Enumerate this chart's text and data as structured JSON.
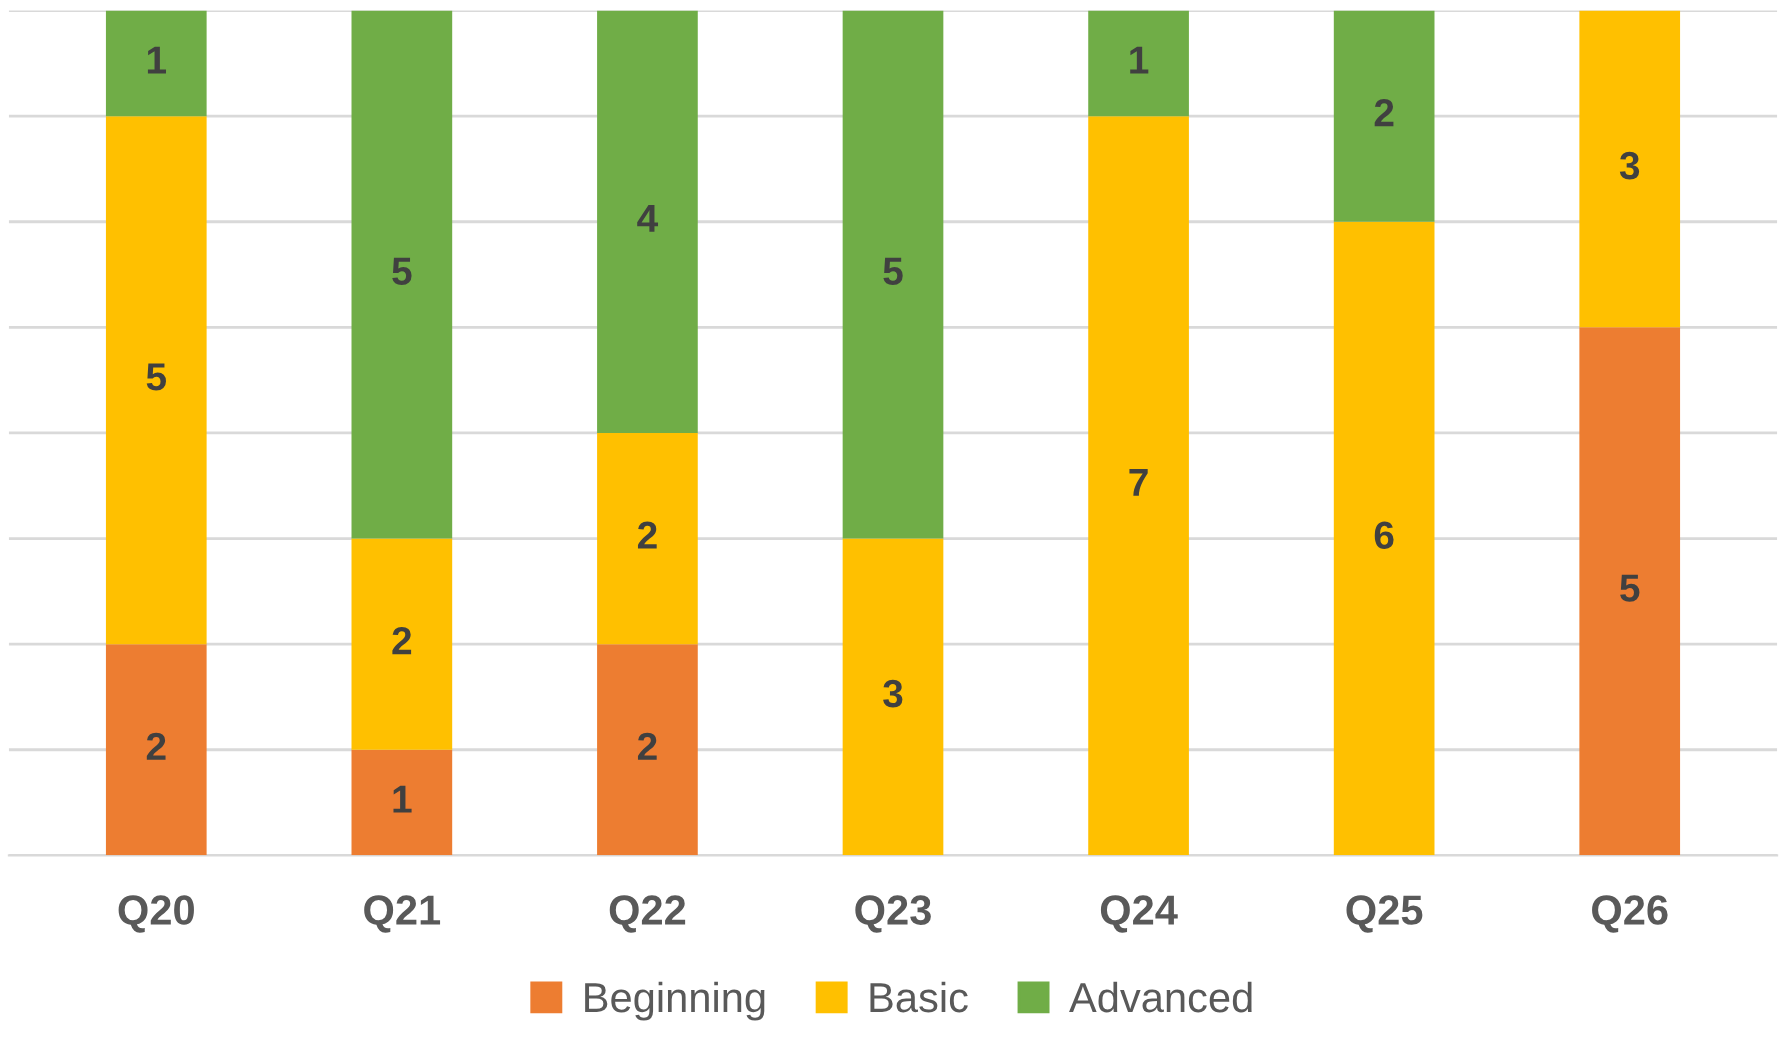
{
  "chart_data": {
    "type": "bar",
    "stacked": true,
    "categories": [
      "Q20",
      "Q21",
      "Q22",
      "Q23",
      "Q24",
      "Q25",
      "Q26"
    ],
    "series": [
      {
        "name": "Beginning",
        "color": "#ed7d31",
        "values": [
          2,
          1,
          2,
          null,
          null,
          null,
          5
        ]
      },
      {
        "name": "Basic",
        "color": "#ffc000",
        "values": [
          5,
          2,
          2,
          3,
          7,
          6,
          3
        ]
      },
      {
        "name": "Advanced",
        "color": "#70ad47",
        "values": [
          1,
          5,
          4,
          5,
          1,
          2,
          null
        ]
      }
    ],
    "ylim": [
      0,
      8
    ],
    "yticks": [
      {
        "value": 0,
        "label": null
      },
      {
        "value": 1,
        "label": null
      },
      {
        "value": 2,
        "label": null
      },
      {
        "value": 3,
        "label": null
      },
      {
        "value": 4,
        "label": null
      },
      {
        "value": 5,
        "label": null
      },
      {
        "value": 6,
        "label": null
      },
      {
        "value": 7,
        "label": null
      },
      {
        "value": 8,
        "label": null
      }
    ],
    "tick_labels": "x",
    "grid": "y",
    "data_labels": true,
    "legend": "bottom"
  }
}
